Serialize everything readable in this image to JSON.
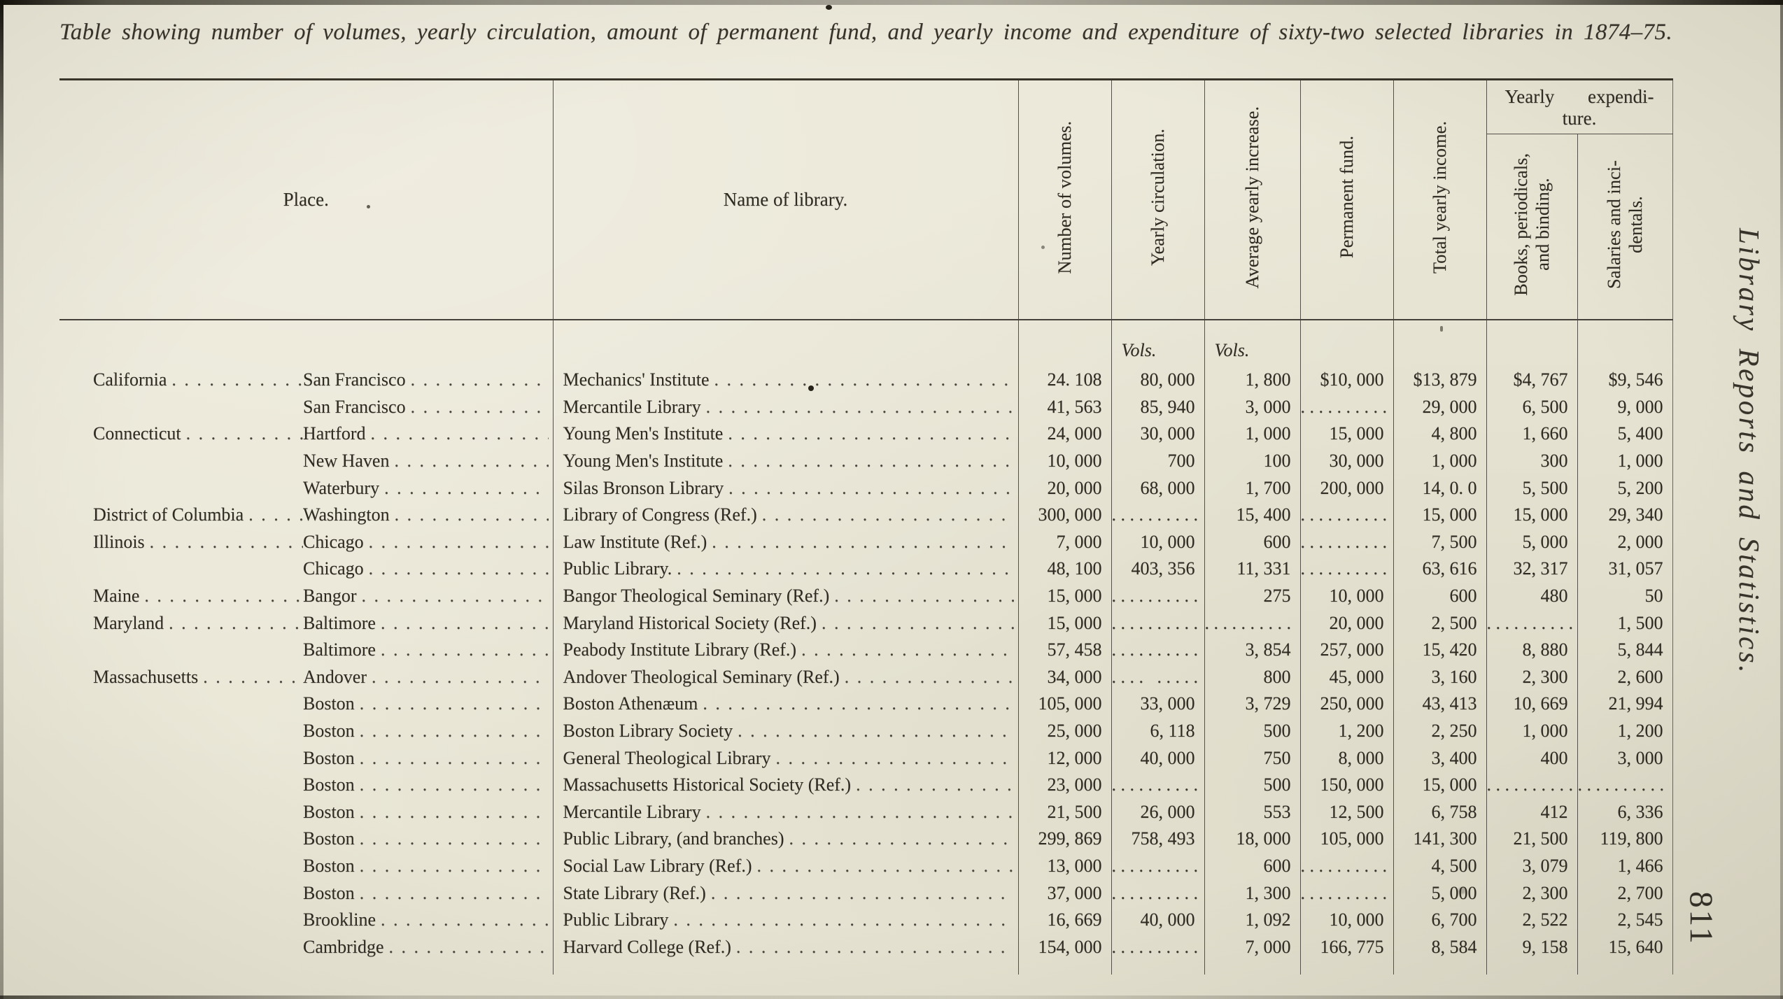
{
  "page": {
    "title": "Table showing number of volumes, yearly circulation, amount of permanent fund, and yearly income and expenditure of sixty-two selected libraries in 1874–75.",
    "margin_title": "Library Reports and Statistics.",
    "page_number": "811"
  },
  "table": {
    "headers": {
      "place": "Place.",
      "name": "Name of library.",
      "volumes": "Number of volumes.",
      "circulation": "Yearly circulation.",
      "increase": "Average yearly increase.",
      "fund": "Permanent fund.",
      "income": "Total yearly income.",
      "expenditure_group_line1": "Yearly expendi-",
      "expenditure_group_line2": "ture.",
      "books_line1": "Books, periodicals,",
      "books_line2": "and binding.",
      "salaries_line1": "Salaries and inci-",
      "salaries_line2": "dentals.",
      "units_circulation": "Vols.",
      "units_increase": "Vols."
    },
    "value_columns": [
      "volumes",
      "circulation",
      "increase",
      "fund",
      "income",
      "books",
      "salaries"
    ],
    "rows": [
      {
        "state": "California",
        "city": "San Francisco",
        "library": "Mechanics' Institute",
        "values": [
          "24. 108",
          "80, 000",
          "1, 800",
          "$10, 000",
          "$13, 879",
          "$4, 767",
          "$9, 546"
        ]
      },
      {
        "state": "",
        "city": "San Francisco",
        "library": "Mercantile Library",
        "values": [
          "41, 563",
          "85, 940",
          "3, 000",
          "..........",
          "29, 000",
          "6, 500",
          "9, 000"
        ]
      },
      {
        "state": "Connecticut",
        "city": "Hartford",
        "library": "Young Men's Institute",
        "values": [
          "24, 000",
          "30, 000",
          "1, 000",
          "15, 000",
          "4, 800",
          "1, 660",
          "5, 400"
        ]
      },
      {
        "state": "",
        "city": "New Haven",
        "library": "Young Men's Institute",
        "values": [
          "10, 000",
          "700",
          "100",
          "30, 000",
          "1, 000",
          "300",
          "1, 000"
        ]
      },
      {
        "state": "",
        "city": "Waterbury",
        "library": "Silas Bronson Library",
        "values": [
          "20, 000",
          "68, 000",
          "1, 700",
          "200, 000",
          "14, 0. 0",
          "5, 500",
          "5, 200"
        ]
      },
      {
        "state": "District of Columbia",
        "city": "Washington",
        "library": "Library of Congress (Ref.)",
        "values": [
          "300, 000",
          "..........",
          "15, 400",
          "..........",
          "15, 000",
          "15, 000",
          "29, 340"
        ]
      },
      {
        "state": "Illinois",
        "city": "Chicago",
        "library": "Law Institute (Ref.)",
        "values": [
          "7, 000",
          "10, 000",
          "600",
          "..........",
          "7, 500",
          "5, 000",
          "2, 000"
        ]
      },
      {
        "state": "",
        "city": "Chicago",
        "library": "Public Library.",
        "values": [
          "48, 100",
          "403, 356",
          "11, 331",
          "..........",
          "63, 616",
          "32, 317",
          "31, 057"
        ]
      },
      {
        "state": "Maine",
        "city": "Bangor",
        "library": "Bangor Theological Seminary (Ref.)",
        "values": [
          "15, 000",
          "..........",
          "275",
          "10, 000",
          "600",
          "480",
          "50"
        ]
      },
      {
        "state": "Maryland",
        "city": "Baltimore",
        "library": "Maryland Historical Society (Ref.)",
        "values": [
          "15, 000",
          "..........",
          "..........",
          "20, 000",
          "2, 500",
          "..........",
          "1, 500"
        ]
      },
      {
        "state": "",
        "city": "Baltimore",
        "library": "Peabody Institute Library (Ref.)",
        "values": [
          "57, 458",
          "..........",
          "3, 854",
          "257, 000",
          "15, 420",
          "8, 880",
          "5, 844"
        ]
      },
      {
        "state": "Massachusetts",
        "city": "Andover",
        "library": "Andover Theological Seminary (Ref.)",
        "values": [
          "34, 000",
          ".... .....",
          "800",
          "45, 000",
          "3, 160",
          "2, 300",
          "2, 600"
        ]
      },
      {
        "state": "",
        "city": "Boston",
        "library": "Boston Athenæum",
        "values": [
          "105, 000",
          "33, 000",
          "3, 729",
          "250, 000",
          "43, 413",
          "10, 669",
          "21, 994"
        ]
      },
      {
        "state": "",
        "city": "Boston",
        "library": "Boston Library Society",
        "values": [
          "25, 000",
          "6, 118",
          "500",
          "1, 200",
          "2, 250",
          "1, 000",
          "1, 200"
        ]
      },
      {
        "state": "",
        "city": "Boston",
        "library": "General Theological Library",
        "values": [
          "12, 000",
          "40, 000",
          "750",
          "8, 000",
          "3, 400",
          "400",
          "3, 000"
        ]
      },
      {
        "state": "",
        "city": "Boston",
        "library": "Massachusetts Historical Society (Ref.)",
        "values": [
          "23, 000",
          "..........",
          "500",
          "150, 000",
          "15, 000",
          "..........",
          ".........."
        ]
      },
      {
        "state": "",
        "city": "Boston",
        "library": "Mercantile Library",
        "values": [
          "21, 500",
          "26, 000",
          "553",
          "12, 500",
          "6, 758",
          "412",
          "6, 336"
        ]
      },
      {
        "state": "",
        "city": "Boston",
        "library": "Public Library, (and branches)",
        "values": [
          "299, 869",
          "758, 493",
          "18, 000",
          "105, 000",
          "141, 300",
          "21, 500",
          "119, 800"
        ]
      },
      {
        "state": "",
        "city": "Boston",
        "library": "Social Law Library (Ref.)",
        "values": [
          "13, 000",
          "..........",
          "600",
          "..........",
          "4, 500",
          "3, 079",
          "1, 466"
        ]
      },
      {
        "state": "",
        "city": "Boston",
        "library": "State Library (Ref.)",
        "values": [
          "37, 000",
          "..........",
          "1, 300",
          "..........",
          "5, 000",
          "2, 300",
          "2, 700"
        ]
      },
      {
        "state": "",
        "city": "Brookline",
        "library": "Public Library",
        "values": [
          "16, 669",
          "40, 000",
          "1, 092",
          "10, 000",
          "6, 700",
          "2, 522",
          "2, 545"
        ]
      },
      {
        "state": "",
        "city": "Cambridge",
        "library": "Harvard College (Ref.)",
        "values": [
          "154, 000",
          "..........",
          "7, 000",
          "166, 775",
          "8, 584",
          "9, 158",
          "15, 640"
        ]
      }
    ]
  },
  "colors": {
    "paper": "#eae7d7",
    "ink": "#2f2b23",
    "rule": "#55514a"
  }
}
